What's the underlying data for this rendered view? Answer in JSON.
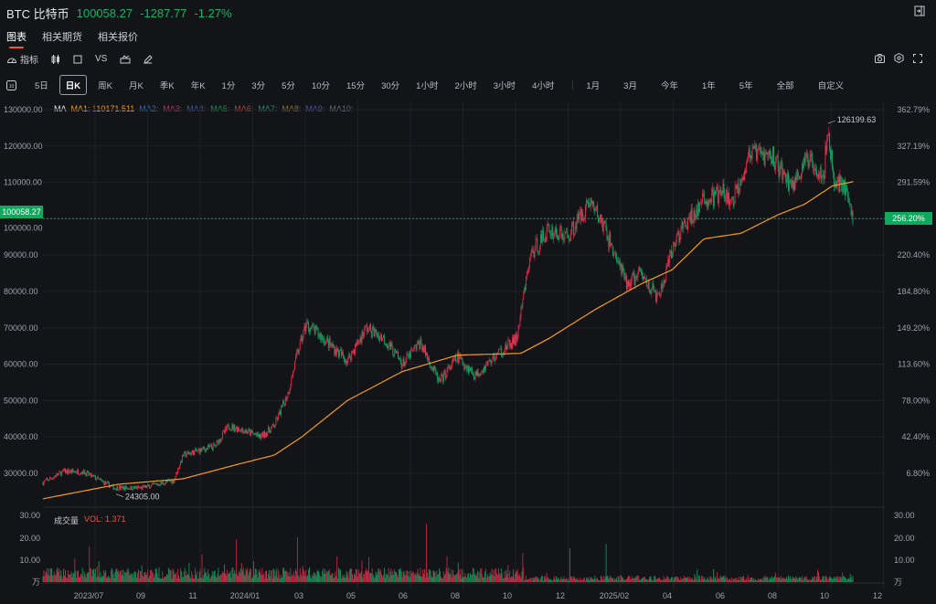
{
  "header": {
    "symbol": "BTC 比特币",
    "price": "100058.27",
    "change": "-1287.77",
    "change_pct": "-1.27%"
  },
  "tabs": [
    "图表",
    "相关期货",
    "相关报价"
  ],
  "toolbar": {
    "indicator_label": "指标",
    "vs_label": "VS"
  },
  "periods": [
    "5日",
    "日K",
    "周K",
    "月K",
    "季K",
    "年K",
    "1分",
    "3分",
    "5分",
    "10分",
    "15分",
    "30分",
    "1小时",
    "2小时",
    "3小时",
    "4小时"
  ],
  "ranges": [
    "1月",
    "3月",
    "今年",
    "1年",
    "5年",
    "全部",
    "自定义"
  ],
  "active_period": "日K",
  "ma_legend": {
    "label": "MA",
    "ma1": "MA1: 110171.511",
    "others": [
      "MA2:",
      "MA3:",
      "MA4:",
      "MA5:",
      "MA6:",
      "MA7:",
      "MA8:",
      "MA9:",
      "MA10:"
    ],
    "colors": [
      "#2f6fb0",
      "#a03a60",
      "#3a5aa0",
      "#1f8a5a",
      "#a04a3a",
      "#2a8a70",
      "#8a6a3a",
      "#5a4aa0",
      "#666a70"
    ]
  },
  "price_axis": [
    "130000.00",
    "120000.00",
    "110000.00",
    "100000.00",
    "90000.00",
    "80000.00",
    "70000.00",
    "60000.00",
    "50000.00",
    "40000.00",
    "30000.00"
  ],
  "pct_axis": [
    "362.79%",
    "327.19%",
    "291.59%",
    "256.20%",
    "220.40%",
    "184.80%",
    "149.20%",
    "113.60%",
    "78.00%",
    "42.40%",
    "6.80%"
  ],
  "current_price_label": "100058.27",
  "current_pct_label": "256.20%",
  "volume": {
    "title": "成交量",
    "vol_label": "VOL: 1.371",
    "axis": [
      "30.00",
      "20.00",
      "10.00",
      "万"
    ]
  },
  "x_axis": [
    "2023/07",
    "09",
    "11",
    "2024/01",
    "03",
    "05",
    "06",
    "08",
    "10",
    "12",
    "2025/02",
    "04",
    "06",
    "08",
    "10",
    "12"
  ],
  "colors": {
    "up": "#e0294a",
    "down": "#12a865",
    "ma1": "#f39c1f",
    "bg": "#131418"
  },
  "chart_data": {
    "type": "candlestick",
    "ylim": [
      23000,
      132000
    ],
    "high_label": "126199.63",
    "low_label": "24305.00",
    "high": 126199.63,
    "low": 24305.0,
    "price_keypoints": [
      [
        0,
        27500
      ],
      [
        24,
        30500
      ],
      [
        46,
        30500
      ],
      [
        83,
        26000
      ],
      [
        115,
        26000
      ],
      [
        152,
        28000
      ],
      [
        163,
        35000
      ],
      [
        200,
        37500
      ],
      [
        216,
        43000
      ],
      [
        232,
        42000
      ],
      [
        253,
        40000
      ],
      [
        269,
        43000
      ],
      [
        285,
        52000
      ],
      [
        296,
        63000
      ],
      [
        306,
        71000
      ],
      [
        322,
        68000
      ],
      [
        354,
        61000
      ],
      [
        376,
        70000
      ],
      [
        397,
        67000
      ],
      [
        418,
        60000
      ],
      [
        439,
        66000
      ],
      [
        461,
        55000
      ],
      [
        482,
        62000
      ],
      [
        503,
        57000
      ],
      [
        530,
        63000
      ],
      [
        551,
        67000
      ],
      [
        567,
        90000
      ],
      [
        588,
        97000
      ],
      [
        610,
        95000
      ],
      [
        636,
        105000
      ],
      [
        652,
        98000
      ],
      [
        679,
        82000
      ],
      [
        695,
        85000
      ],
      [
        716,
        78000
      ],
      [
        737,
        95000
      ],
      [
        769,
        105000
      ],
      [
        791,
        107000
      ],
      [
        801,
        104000
      ],
      [
        822,
        118000
      ],
      [
        849,
        117000
      ],
      [
        870,
        109000
      ],
      [
        892,
        117000
      ],
      [
        908,
        112000
      ],
      [
        913,
        125000
      ],
      [
        920,
        110000
      ],
      [
        931,
        110000
      ],
      [
        942,
        100058.27
      ]
    ],
    "ma1_keypoints": [
      [
        0,
        23000
      ],
      [
        88,
        27000
      ],
      [
        163,
        28500
      ],
      [
        227,
        32500
      ],
      [
        269,
        35000
      ],
      [
        301,
        40000
      ],
      [
        354,
        50000
      ],
      [
        418,
        58000
      ],
      [
        482,
        62500
      ],
      [
        556,
        63000
      ],
      [
        588,
        67000
      ],
      [
        642,
        75000
      ],
      [
        695,
        82000
      ],
      [
        732,
        86000
      ],
      [
        769,
        94500
      ],
      [
        812,
        96000
      ],
      [
        854,
        101000
      ],
      [
        886,
        104000
      ],
      [
        918,
        109000
      ],
      [
        942,
        110171.511
      ]
    ],
    "volume_ylim": [
      0,
      30
    ],
    "volume_spikes": [
      [
        54,
        16
      ],
      [
        225,
        19
      ],
      [
        296,
        20
      ],
      [
        446,
        26
      ],
      [
        613,
        15
      ],
      [
        655,
        17
      ]
    ]
  }
}
